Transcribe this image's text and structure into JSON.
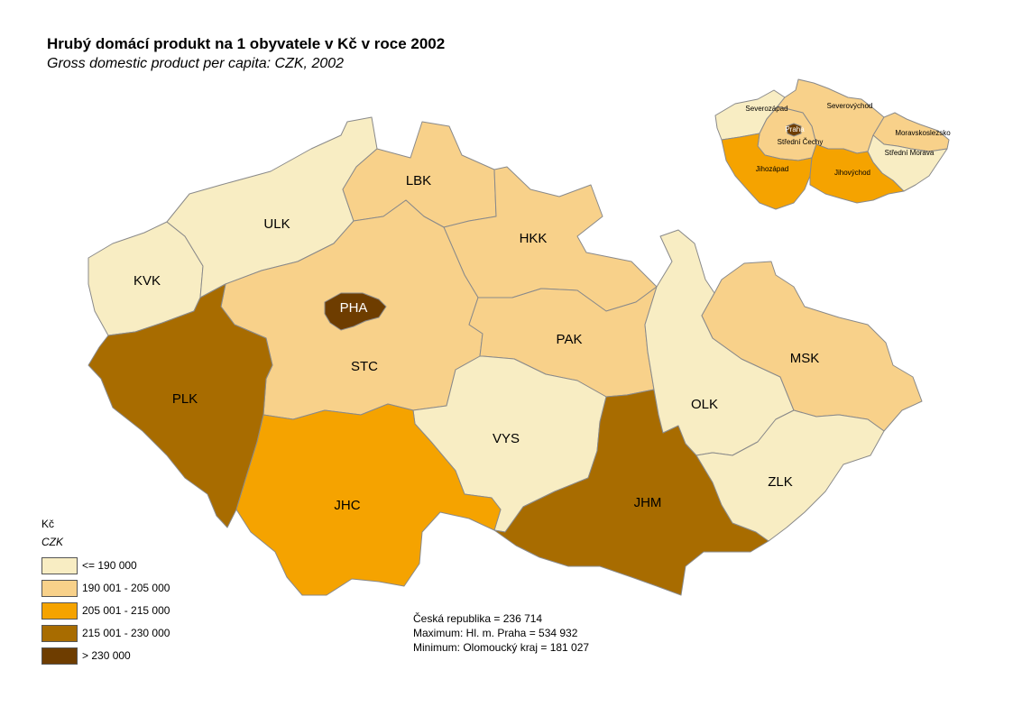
{
  "title": "Hrubý domácí produkt na 1 obyvatele v Kč v roce 2002",
  "subtitle": "Gross domestic product per capita: CZK, 2002",
  "colors": {
    "class1": "#f8edc3",
    "class2": "#f8d18a",
    "class3": "#f5a300",
    "class4": "#a86c00",
    "class5": "#6e3d00",
    "border": "#8a8a8a"
  },
  "regions": [
    {
      "code": "KVK",
      "class": "class1"
    },
    {
      "code": "ULK",
      "class": "class1"
    },
    {
      "code": "LBK",
      "class": "class2"
    },
    {
      "code": "HKK",
      "class": "class2"
    },
    {
      "code": "PHA",
      "class": "class5"
    },
    {
      "code": "STC",
      "class": "class2"
    },
    {
      "code": "PLK",
      "class": "class4"
    },
    {
      "code": "PAK",
      "class": "class2"
    },
    {
      "code": "VYS",
      "class": "class1"
    },
    {
      "code": "JHC",
      "class": "class3"
    },
    {
      "code": "JHM",
      "class": "class4"
    },
    {
      "code": "OLK",
      "class": "class1"
    },
    {
      "code": "MSK",
      "class": "class2"
    },
    {
      "code": "ZLK",
      "class": "class1"
    }
  ],
  "inset": {
    "regions": [
      {
        "name": "Severozápad",
        "class": "class1"
      },
      {
        "name": "Severovýchod",
        "class": "class2"
      },
      {
        "name": "Praha",
        "class": "class5"
      },
      {
        "name": "Střední Čechy",
        "class": "class2"
      },
      {
        "name": "Jihozápad",
        "class": "class3"
      },
      {
        "name": "Jihovýchod",
        "class": "class3"
      },
      {
        "name": "Moravskoslezsko",
        "class": "class2"
      },
      {
        "name": "Střední Morava",
        "class": "class1"
      }
    ]
  },
  "legend": {
    "heading": "Kč",
    "heading_en": "CZK",
    "items": [
      {
        "label": "<= 190 000",
        "class": "class1"
      },
      {
        "label": "190 001 - 205 000",
        "class": "class2"
      },
      {
        "label": "205 001 - 215 000",
        "class": "class3"
      },
      {
        "label": "215 001 - 230 000",
        "class": "class4"
      },
      {
        "label": "> 230 000",
        "class": "class5"
      }
    ]
  },
  "stats": {
    "line1": "Česká republika = 236 714",
    "line2": "Maximum: Hl. m. Praha = 534 932",
    "line3": "Minimum: Olomoucký kraj = 181 027"
  }
}
